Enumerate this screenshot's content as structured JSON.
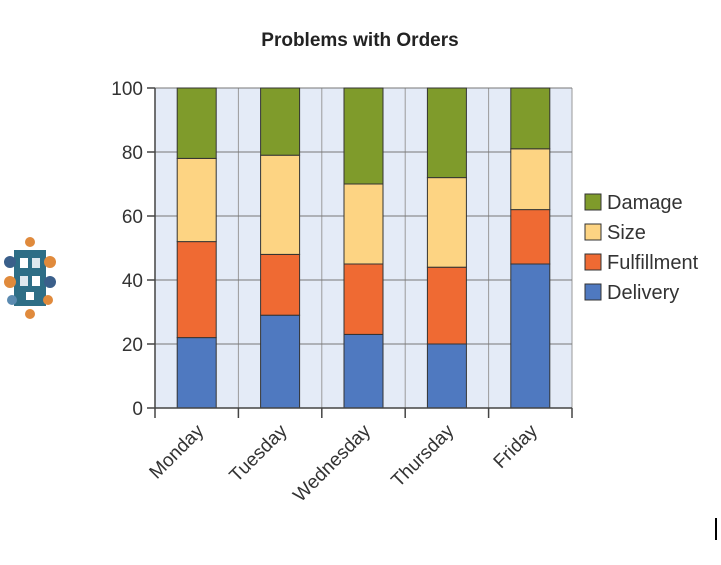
{
  "chart_data": {
    "type": "bar",
    "stacked": true,
    "title": "Problems with Orders",
    "xlabel": "",
    "ylabel": "",
    "categories": [
      "Monday",
      "Tuesday",
      "Wednesday",
      "Thursday",
      "Friday"
    ],
    "ylim": [
      0,
      100
    ],
    "yticks": [
      0,
      20,
      40,
      60,
      80,
      100
    ],
    "grid": true,
    "legend_position": "right",
    "series": [
      {
        "name": "Delivery",
        "color": "#4f79c0",
        "values": [
          22,
          29,
          23,
          20,
          45
        ]
      },
      {
        "name": "Fulfillment",
        "color": "#ef6a33",
        "values": [
          30,
          19,
          22,
          24,
          17
        ]
      },
      {
        "name": "Size",
        "color": "#fdd483",
        "values": [
          26,
          31,
          25,
          28,
          19
        ]
      },
      {
        "name": "Damage",
        "color": "#7f9b2b",
        "values": [
          22,
          21,
          30,
          28,
          19
        ]
      }
    ],
    "legend_order": [
      "Damage",
      "Size",
      "Fulfillment",
      "Delivery"
    ],
    "plot_background": "#e4ebf7"
  },
  "decoration": {
    "icon": "people-circle-icon"
  }
}
